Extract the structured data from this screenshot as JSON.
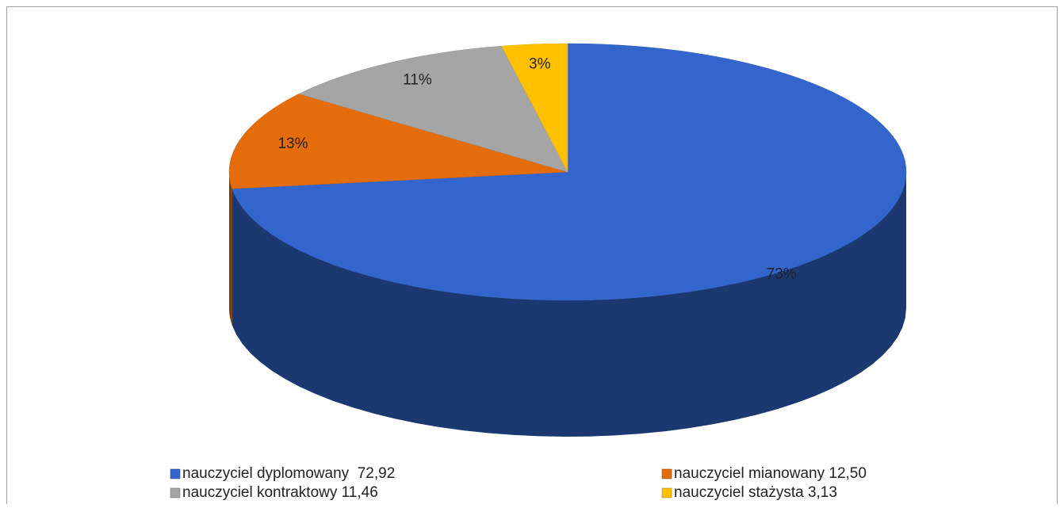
{
  "chart_data": {
    "type": "pie",
    "three_d": true,
    "categories": [
      "nauczyciel dyplomowany  72,92",
      "nauczyciel mianowany 12,50",
      "nauczyciel kontraktowy 11,46",
      "nauczyciel stażysta 3,13"
    ],
    "values": [
      72.92,
      12.5,
      11.46,
      3.13
    ],
    "value_labels": [
      "73%",
      "13%",
      "11%",
      "3%"
    ],
    "colors": [
      "#3366cc",
      "#e46c0a",
      "#a5a5a5",
      "#ffc000"
    ],
    "legend": "bottom"
  }
}
